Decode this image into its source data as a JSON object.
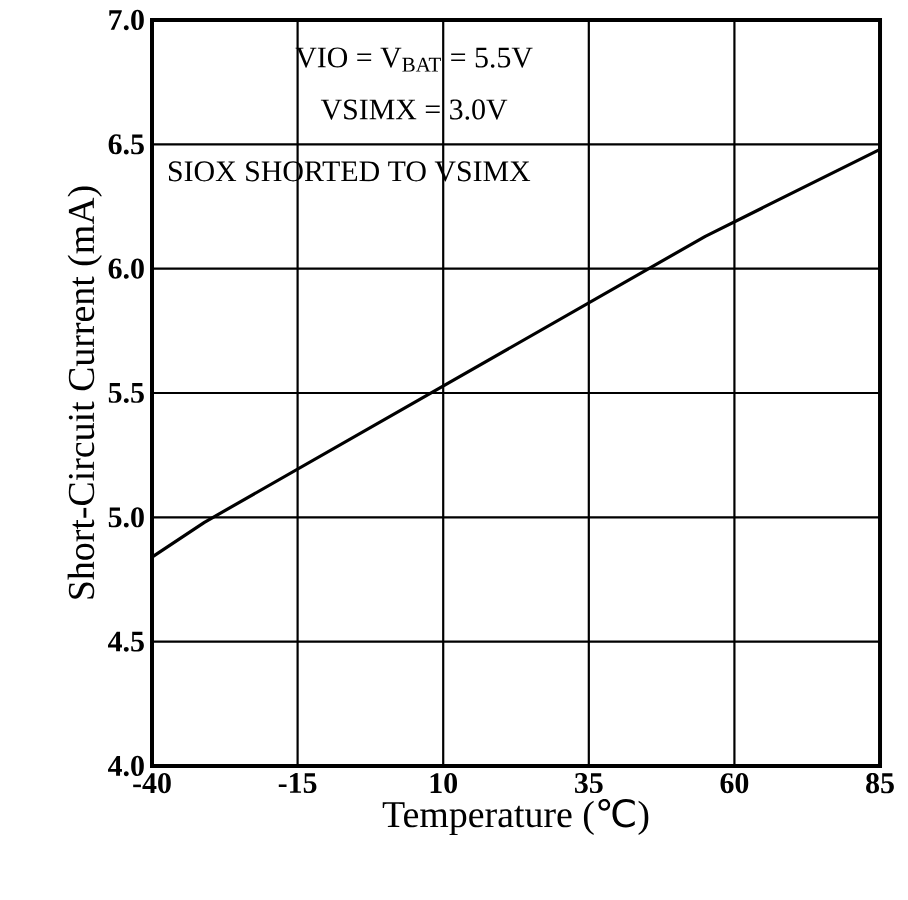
{
  "chart_data": {
    "type": "line",
    "xlabel": "Temperature (℃)",
    "ylabel": "Short-Circuit Current (mA)",
    "annotations": [
      "VIO  = V$_{BAT}$ = 5.5V",
      "VSIMX = 3.0V",
      "SIOX SHORTED TO VSIMX"
    ],
    "x": [
      -40,
      -31,
      55,
      85
    ],
    "series": [
      {
        "color": "#000000",
        "values": [
          4.84,
          4.98,
          6.13,
          6.48
        ]
      }
    ],
    "xlim": [
      -40,
      85
    ],
    "ylim": [
      4.0,
      7.0
    ],
    "xticks": [
      -40,
      -15,
      10,
      35,
      60,
      85
    ],
    "yticks": [
      {
        "value": 4.0,
        "label": "4.0"
      },
      {
        "value": 4.5,
        "label": "4.5"
      },
      {
        "value": 5.0,
        "label": "5.0"
      },
      {
        "value": 5.5,
        "label": "5.5"
      },
      {
        "value": 6.0,
        "label": "6.0"
      },
      {
        "value": 6.5,
        "label": "6.5"
      },
      {
        "value": 7.0,
        "label": "7.0"
      }
    ],
    "grid": true,
    "marker": "none",
    "line_style": "solid"
  }
}
